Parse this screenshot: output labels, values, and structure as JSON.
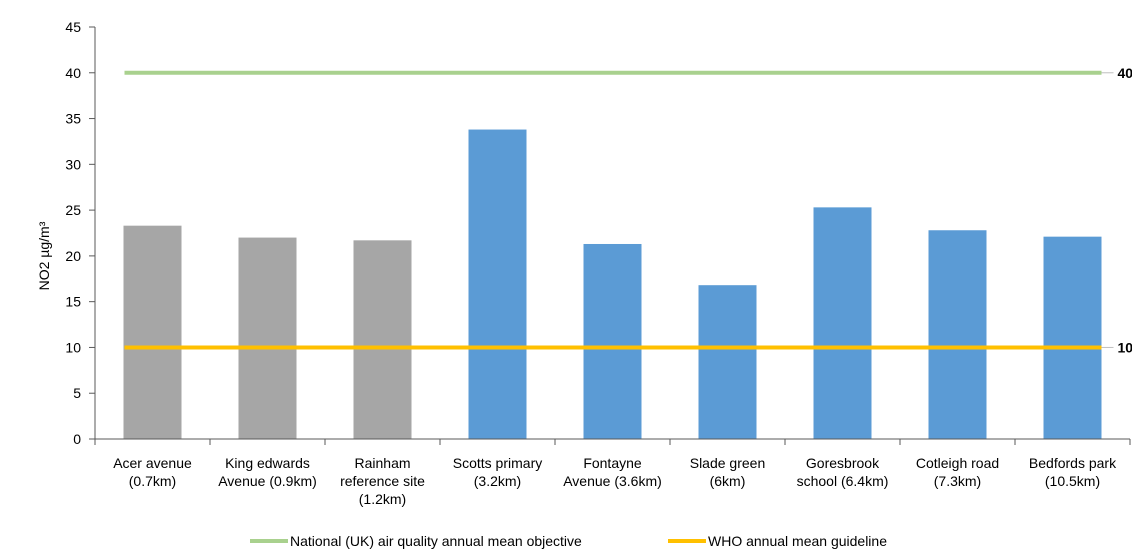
{
  "chart_data": {
    "type": "bar",
    "ylabel": "NO2 µg/m³",
    "ylim": [
      0,
      45
    ],
    "yticks": [
      0,
      5,
      10,
      15,
      20,
      25,
      30,
      35,
      40,
      45
    ],
    "categories": [
      [
        "Acer avenue",
        "(0.7km)"
      ],
      [
        "King edwards",
        "Avenue (0.9km)"
      ],
      [
        "Rainham",
        "reference site",
        "(1.2km)"
      ],
      [
        "Scotts primary",
        "(3.2km)"
      ],
      [
        "Fontayne",
        "Avenue (3.6km)"
      ],
      [
        "Slade green",
        "(6km)"
      ],
      [
        "Goresbrook",
        "school (6.4km)"
      ],
      [
        "Cotleigh road",
        "(7.3km)"
      ],
      [
        "Bedfords park",
        "(10.5km)"
      ]
    ],
    "values": [
      23.3,
      22.0,
      21.7,
      33.8,
      21.3,
      16.8,
      25.3,
      22.8,
      22.1
    ],
    "bar_colors": [
      "#a6a6a6",
      "#a6a6a6",
      "#a6a6a6",
      "#5b9bd5",
      "#5b9bd5",
      "#5b9bd5",
      "#5b9bd5",
      "#5b9bd5",
      "#5b9bd5"
    ],
    "reference_lines": [
      {
        "name": "National (UK) air quality annual mean objective",
        "value": 40,
        "label": "40",
        "color": "#a9d18e"
      },
      {
        "name": "WHO annual mean guideline",
        "value": 10,
        "label": "10",
        "color": "#ffc000"
      }
    ],
    "grid": false,
    "legend_position": "bottom"
  }
}
